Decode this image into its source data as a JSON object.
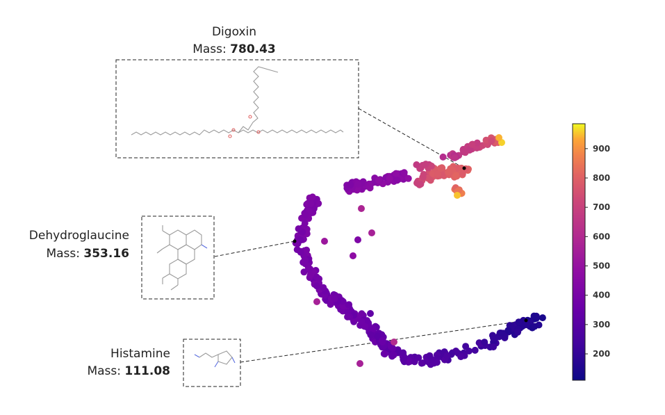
{
  "chart_data": {
    "type": "scatter",
    "title": "",
    "xlabel": "",
    "ylabel": "",
    "colorbar": {
      "colormap": "plasma",
      "range": [
        110,
        985
      ],
      "ticks": [
        "200",
        "300",
        "400",
        "500",
        "600",
        "700",
        "800",
        "900"
      ],
      "tick_values": [
        200,
        300,
        400,
        500,
        600,
        700,
        800,
        900
      ]
    },
    "grid": false,
    "axes_visible": false,
    "annotations": [
      {
        "name": "Digoxin",
        "mass_label": "Mass: ",
        "mass": "780.43",
        "point": [
          668,
          242
        ]
      },
      {
        "name": "Dehydroglaucine",
        "mass_label": "Mass: ",
        "mass": "353.16",
        "point": [
          424,
          347
        ]
      },
      {
        "name": "Histamine",
        "mass_label": "Mass: ",
        "mass": "111.08",
        "point": [
          757,
          461
        ]
      }
    ]
  }
}
